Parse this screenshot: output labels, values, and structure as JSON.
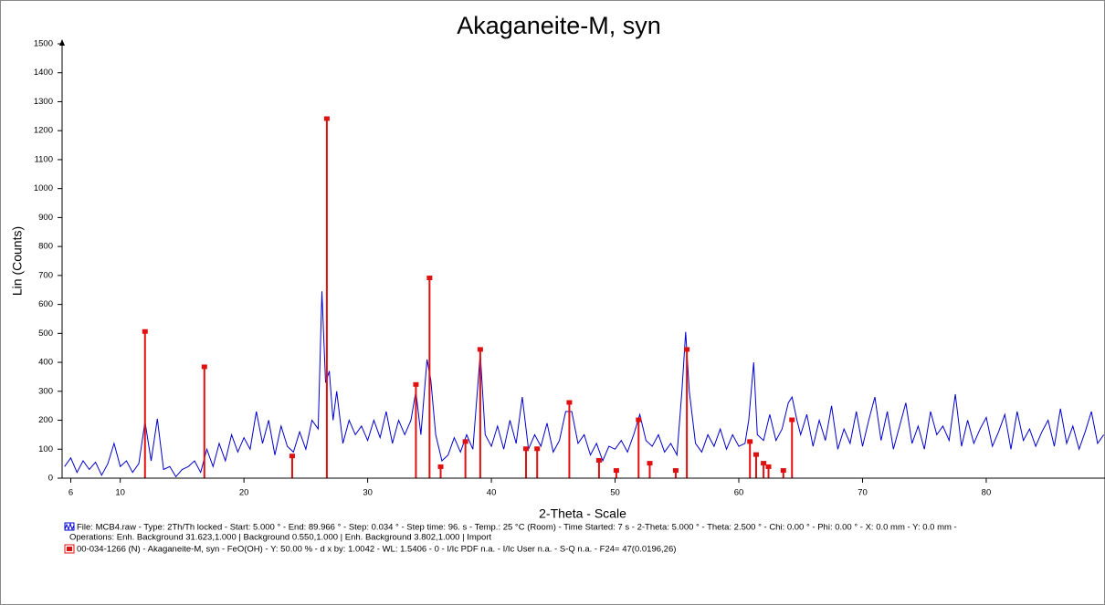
{
  "chart_data": {
    "type": "line",
    "title": "Akaganeite-M, syn",
    "ylabel": "Lin (Counts)",
    "xlabel": "2-Theta - Scale",
    "xlim": [
      5.3,
      89.6
    ],
    "ylim": [
      0,
      1500
    ],
    "xticks": [
      6,
      10,
      20,
      30,
      40,
      50,
      60,
      70,
      80
    ],
    "yticks": [
      0,
      100,
      200,
      300,
      400,
      500,
      600,
      700,
      800,
      900,
      1000,
      1100,
      1200,
      1300,
      1400,
      1500
    ],
    "legend_note": "Operations: Enh. Background 31.623,1.000 | Background 0.550,1.000 | Enh. Background 3.802,1.000 | Import",
    "series": [
      {
        "name": "File: MCB4.raw - Type: 2Th/Th locked - Start: 5.000 ° - End: 89.966 ° - Step: 0.034 ° - Step time: 96. s - Temp.: 25 °C (Room) - Time Started: 7 s - 2-Theta: 5.000 ° - Theta: 2.500 ° - Chi: 0.00 ° - Phi: 0.00 ° - X: 0.0 mm - Y: 0.0 mm -",
        "type": "line",
        "color": "#0000cc",
        "x": [
          5.5,
          6,
          6.5,
          7,
          7.5,
          8,
          8.5,
          9,
          9.5,
          10,
          10.5,
          11,
          11.5,
          12,
          12.5,
          13,
          13.5,
          14,
          14.5,
          15,
          15.5,
          16,
          16.5,
          17,
          17.5,
          18,
          18.5,
          19,
          19.5,
          20,
          20.5,
          21,
          21.5,
          22,
          22.5,
          23,
          23.5,
          24,
          24.5,
          25,
          25.5,
          26,
          26.3,
          26.6,
          26.9,
          27.2,
          27.5,
          28,
          28.5,
          29,
          29.5,
          30,
          30.5,
          31,
          31.5,
          32,
          32.5,
          33,
          33.5,
          33.9,
          34.3,
          34.8,
          35.1,
          35.5,
          36,
          36.5,
          37,
          37.5,
          38,
          38.5,
          39.1,
          39.5,
          40,
          40.5,
          41,
          41.5,
          42,
          42.5,
          43,
          43.5,
          44,
          44.5,
          45,
          45.5,
          46,
          46.5,
          47,
          47.5,
          48,
          48.5,
          49,
          49.5,
          50,
          50.5,
          51,
          51.5,
          52,
          52.5,
          53,
          53.5,
          54,
          54.5,
          55,
          55.4,
          55.7,
          56,
          56.5,
          57,
          57.5,
          58,
          58.5,
          59,
          59.5,
          60,
          60.5,
          60.8,
          61.2,
          61.5,
          62,
          62.5,
          63,
          63.5,
          64,
          64.3,
          64.7,
          65,
          65.5,
          66,
          66.5,
          67,
          67.5,
          68,
          68.5,
          69,
          69.5,
          70,
          70.5,
          71,
          71.5,
          72,
          72.5,
          73,
          73.5,
          74,
          74.5,
          75,
          75.5,
          76,
          76.5,
          77,
          77.5,
          78,
          78.5,
          79,
          79.5,
          80,
          80.5,
          81,
          81.5,
          82,
          82.5,
          83,
          83.5,
          84,
          84.5,
          85,
          85.5,
          86,
          86.5,
          87,
          87.5,
          88,
          88.5,
          89,
          89.5
        ],
        "values": [
          40,
          70,
          20,
          60,
          30,
          55,
          10,
          50,
          120,
          40,
          60,
          20,
          50,
          195,
          60,
          205,
          30,
          40,
          5,
          30,
          40,
          60,
          20,
          100,
          40,
          120,
          60,
          150,
          90,
          140,
          100,
          230,
          120,
          200,
          80,
          180,
          110,
          90,
          160,
          100,
          200,
          170,
          645,
          330,
          370,
          200,
          300,
          120,
          200,
          150,
          180,
          130,
          200,
          140,
          230,
          120,
          200,
          150,
          200,
          300,
          150,
          410,
          340,
          150,
          60,
          80,
          140,
          90,
          150,
          100,
          430,
          150,
          110,
          180,
          100,
          200,
          120,
          280,
          100,
          150,
          110,
          190,
          90,
          130,
          230,
          230,
          120,
          150,
          80,
          120,
          60,
          110,
          100,
          130,
          90,
          150,
          220,
          130,
          110,
          150,
          90,
          120,
          80,
          300,
          505,
          300,
          120,
          90,
          150,
          110,
          170,
          100,
          150,
          110,
          120,
          200,
          400,
          150,
          130,
          220,
          130,
          170,
          260,
          280,
          200,
          150,
          220,
          110,
          200,
          130,
          250,
          100,
          170,
          120,
          230,
          110,
          200,
          280,
          130,
          230,
          100,
          180,
          260,
          120,
          180,
          100,
          230,
          150,
          180,
          130,
          290,
          110,
          200,
          120,
          170,
          210,
          110,
          160,
          220,
          100,
          230,
          130,
          170,
          110,
          160,
          200,
          110,
          240,
          120,
          180,
          100,
          160,
          230,
          120,
          150
        ]
      },
      {
        "name": "00-034-1266 (N) - Akaganeite-M, syn - FeO(OH) - Y: 50.00 % - d x by: 1.0042 - WL: 1.5406 - 0 - I/Ic PDF n.a. - I/Ic User n.a. - S-Q n.a. - F24= 47(0.0196,26)",
        "type": "stick",
        "color": "#e01010",
        "x": [
          12.0,
          16.8,
          23.9,
          26.7,
          33.9,
          35.0,
          35.9,
          37.9,
          39.1,
          42.8,
          43.7,
          46.3,
          48.7,
          50.1,
          51.9,
          52.8,
          54.9,
          55.8,
          60.9,
          61.4,
          62.0,
          62.4,
          63.6,
          64.3
        ],
        "values": [
          505,
          383,
          75,
          1240,
          322,
          690,
          38,
          125,
          443,
          100,
          100,
          260,
          60,
          25,
          200,
          50,
          25,
          443,
          125,
          80,
          50,
          38,
          25,
          200
        ]
      }
    ]
  }
}
